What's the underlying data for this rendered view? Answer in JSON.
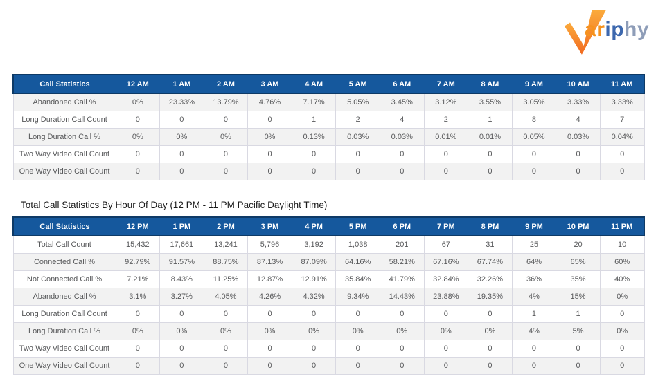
{
  "logo": {
    "alt": "Variphy",
    "v_color_top": "#FBAB3C",
    "v_color_bottom": "#F1691F",
    "letters": [
      {
        "char": "a",
        "color": "#F6921E"
      },
      {
        "char": "r",
        "color": "#F6921E"
      },
      {
        "char": "i",
        "color": "#3D68AE"
      },
      {
        "char": "p",
        "color": "#3D68AE"
      },
      {
        "char": "h",
        "color": "#8E9DB8"
      },
      {
        "char": "y",
        "color": "#8E9DB8"
      }
    ]
  },
  "pm_title": "Total Call Statistics By Hour Of Day (12 PM - 11 PM Pacific Daylight Time)",
  "tables": [
    {
      "name": "am-call-statistics",
      "columns": [
        "Call Statistics",
        "12 AM",
        "1 AM",
        "2 AM",
        "3 AM",
        "4 AM",
        "5 AM",
        "6 AM",
        "7 AM",
        "8 AM",
        "9 AM",
        "10 AM",
        "11 AM"
      ],
      "rows": [
        {
          "label": "Abandoned Call %",
          "shaded": true,
          "values": [
            "0%",
            "23.33%",
            "13.79%",
            "4.76%",
            "7.17%",
            "5.05%",
            "3.45%",
            "3.12%",
            "3.55%",
            "3.05%",
            "3.33%",
            "3.33%"
          ]
        },
        {
          "label": "Long Duration Call Count",
          "shaded": false,
          "values": [
            "0",
            "0",
            "0",
            "0",
            "1",
            "2",
            "4",
            "2",
            "1",
            "8",
            "4",
            "7"
          ]
        },
        {
          "label": "Long Duration Call %",
          "shaded": true,
          "values": [
            "0%",
            "0%",
            "0%",
            "0%",
            "0.13%",
            "0.03%",
            "0.03%",
            "0.01%",
            "0.01%",
            "0.05%",
            "0.03%",
            "0.04%"
          ]
        },
        {
          "label": "Two Way Video Call Count",
          "shaded": false,
          "values": [
            "0",
            "0",
            "0",
            "0",
            "0",
            "0",
            "0",
            "0",
            "0",
            "0",
            "0",
            "0"
          ]
        },
        {
          "label": "One Way Video Call Count",
          "shaded": true,
          "values": [
            "0",
            "0",
            "0",
            "0",
            "0",
            "0",
            "0",
            "0",
            "0",
            "0",
            "0",
            "0"
          ]
        }
      ]
    },
    {
      "name": "pm-call-statistics",
      "columns": [
        "Call Statistics",
        "12 PM",
        "1 PM",
        "2 PM",
        "3 PM",
        "4 PM",
        "5 PM",
        "6 PM",
        "7 PM",
        "8 PM",
        "9 PM",
        "10 PM",
        "11 PM"
      ],
      "rows": [
        {
          "label": "Total Call Count",
          "shaded": false,
          "values": [
            "15,432",
            "17,661",
            "13,241",
            "5,796",
            "3,192",
            "1,038",
            "201",
            "67",
            "31",
            "25",
            "20",
            "10"
          ]
        },
        {
          "label": "Connected Call %",
          "shaded": true,
          "values": [
            "92.79%",
            "91.57%",
            "88.75%",
            "87.13%",
            "87.09%",
            "64.16%",
            "58.21%",
            "67.16%",
            "67.74%",
            "64%",
            "65%",
            "60%"
          ]
        },
        {
          "label": "Not Connected Call %",
          "shaded": false,
          "values": [
            "7.21%",
            "8.43%",
            "11.25%",
            "12.87%",
            "12.91%",
            "35.84%",
            "41.79%",
            "32.84%",
            "32.26%",
            "36%",
            "35%",
            "40%"
          ]
        },
        {
          "label": "Abandoned Call %",
          "shaded": true,
          "values": [
            "3.1%",
            "3.27%",
            "4.05%",
            "4.26%",
            "4.32%",
            "9.34%",
            "14.43%",
            "23.88%",
            "19.35%",
            "4%",
            "15%",
            "0%"
          ]
        },
        {
          "label": "Long Duration Call Count",
          "shaded": false,
          "values": [
            "0",
            "0",
            "0",
            "0",
            "0",
            "0",
            "0",
            "0",
            "0",
            "1",
            "1",
            "0"
          ]
        },
        {
          "label": "Long Duration Call %",
          "shaded": true,
          "values": [
            "0%",
            "0%",
            "0%",
            "0%",
            "0%",
            "0%",
            "0%",
            "0%",
            "0%",
            "4%",
            "5%",
            "0%"
          ]
        },
        {
          "label": "Two Way Video Call Count",
          "shaded": false,
          "values": [
            "0",
            "0",
            "0",
            "0",
            "0",
            "0",
            "0",
            "0",
            "0",
            "0",
            "0",
            "0"
          ]
        },
        {
          "label": "One Way Video Call Count",
          "shaded": true,
          "values": [
            "0",
            "0",
            "0",
            "0",
            "0",
            "0",
            "0",
            "0",
            "0",
            "0",
            "0",
            "0"
          ]
        }
      ]
    }
  ],
  "colors": {
    "header_bg": "#15589D",
    "header_border": "#0E3A66",
    "header_text": "#FFFFFF",
    "row_shaded_bg": "#F2F2F2",
    "cell_border": "#D9D9E2",
    "cell_text": "#58595B",
    "title_text": "#1A1A1A"
  }
}
